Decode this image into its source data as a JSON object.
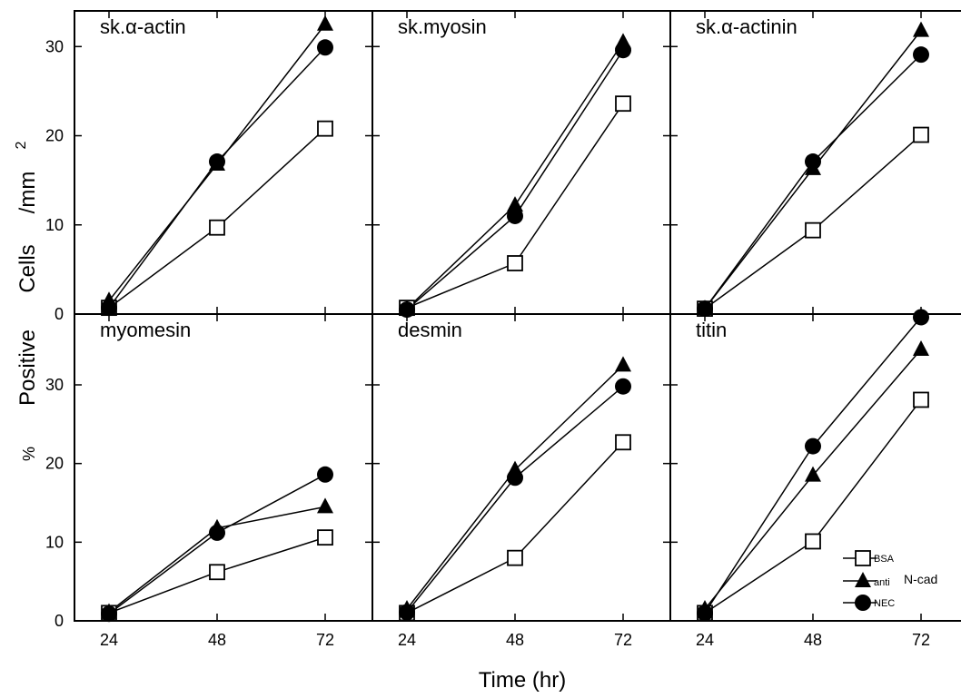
{
  "chart_data": {
    "type": "line",
    "xlabel": "Time   (hr)",
    "ylabel_parts": {
      "percent": "%",
      "positive": "Positive",
      "cells": "Cells",
      "unit": "/mm",
      "unit_exp": "2"
    },
    "x_ticks": [
      24,
      48,
      72
    ],
    "legend": {
      "bsa": "BSA",
      "anti": "anti",
      "ncad": "N-cad",
      "nec": "NEC"
    },
    "panels": [
      {
        "title": "sk.α-actin",
        "ylim": [
          0,
          34
        ],
        "y_ticks": [
          0,
          10,
          20,
          30
        ],
        "series": [
          {
            "key": "bsa",
            "x": [
              24,
              48,
              72
            ],
            "values": [
              0.7,
              9.7,
              20.8
            ]
          },
          {
            "key": "anti",
            "x": [
              24,
              48,
              72
            ],
            "values": [
              1.5,
              16.8,
              32.5
            ]
          },
          {
            "key": "nec",
            "x": [
              24,
              48,
              72
            ],
            "values": [
              0.7,
              17.1,
              29.9
            ]
          }
        ]
      },
      {
        "title": "sk.myosin",
        "ylim": [
          0,
          34
        ],
        "y_ticks": [
          0,
          10,
          20,
          30
        ],
        "series": [
          {
            "key": "bsa",
            "x": [
              24,
              48,
              72
            ],
            "values": [
              0.7,
              5.7,
              23.6
            ]
          },
          {
            "key": "anti",
            "x": [
              24,
              48,
              72
            ],
            "values": [
              0.6,
              12.2,
              30.5
            ]
          },
          {
            "key": "nec",
            "x": [
              24,
              48,
              72
            ],
            "values": [
              0.5,
              11.0,
              29.6
            ]
          }
        ]
      },
      {
        "title": "sk.α-actinin",
        "ylim": [
          0,
          34
        ],
        "y_ticks": [
          0,
          10,
          20,
          30
        ],
        "series": [
          {
            "key": "bsa",
            "x": [
              24,
              48,
              72
            ],
            "values": [
              0.6,
              9.4,
              20.1
            ]
          },
          {
            "key": "anti",
            "x": [
              24,
              48,
              72
            ],
            "values": [
              0.6,
              16.3,
              31.8
            ]
          },
          {
            "key": "nec",
            "x": [
              24,
              48,
              72
            ],
            "values": [
              0.6,
              17.1,
              29.1
            ]
          }
        ]
      },
      {
        "title": "myomesin",
        "ylim": [
          0,
          39
        ],
        "y_ticks": [
          0,
          10,
          20,
          30
        ],
        "series": [
          {
            "key": "bsa",
            "x": [
              24,
              48,
              72
            ],
            "values": [
              1.0,
              6.2,
              10.6
            ]
          },
          {
            "key": "anti",
            "x": [
              24,
              48,
              72
            ],
            "values": [
              1.1,
              11.8,
              14.5
            ]
          },
          {
            "key": "nec",
            "x": [
              24,
              48,
              72
            ],
            "values": [
              0.9,
              11.2,
              18.6
            ]
          }
        ]
      },
      {
        "title": "desmin",
        "ylim": [
          0,
          39
        ],
        "y_ticks": [
          0,
          10,
          20,
          30
        ],
        "series": [
          {
            "key": "bsa",
            "x": [
              24,
              48,
              72
            ],
            "values": [
              1.0,
              8.0,
              22.7
            ]
          },
          {
            "key": "anti",
            "x": [
              24,
              48,
              72
            ],
            "values": [
              1.5,
              19.2,
              32.5
            ]
          },
          {
            "key": "nec",
            "x": [
              24,
              48,
              72
            ],
            "values": [
              1.1,
              18.2,
              29.8
            ]
          }
        ]
      },
      {
        "title": "titin",
        "ylim": [
          0,
          39
        ],
        "y_ticks": [
          0,
          10,
          20,
          30
        ],
        "series": [
          {
            "key": "bsa",
            "x": [
              24,
              48,
              72
            ],
            "values": [
              1.0,
              10.1,
              28.1
            ]
          },
          {
            "key": "anti",
            "x": [
              24,
              48,
              72
            ],
            "values": [
              1.5,
              18.5,
              34.5
            ]
          },
          {
            "key": "nec",
            "x": [
              24,
              48,
              72
            ],
            "values": [
              1.0,
              22.2,
              38.6
            ]
          }
        ]
      }
    ]
  }
}
